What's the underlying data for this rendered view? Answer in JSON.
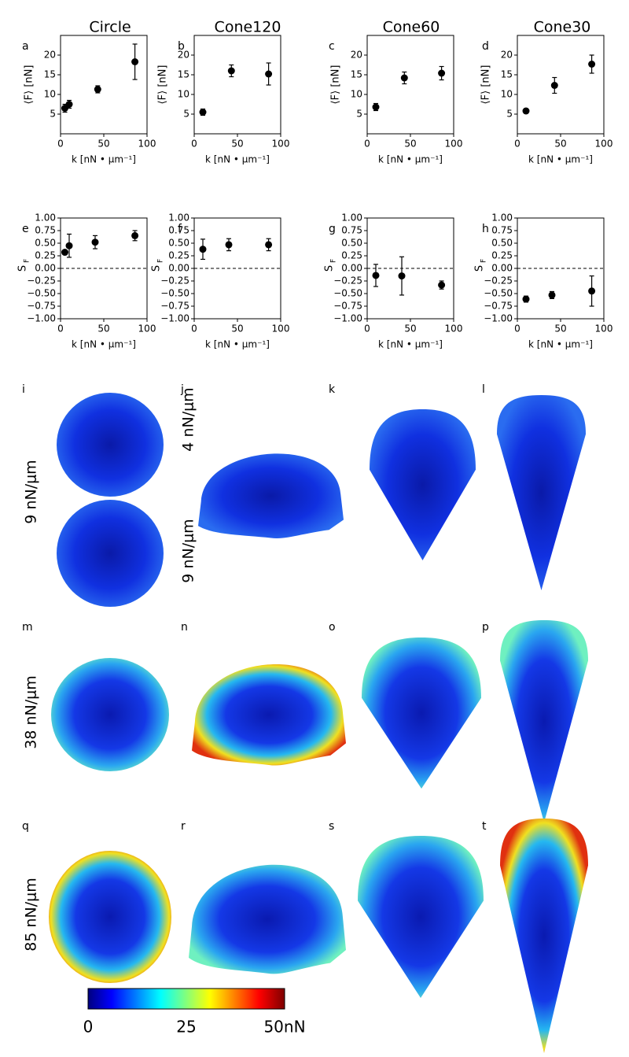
{
  "columns": [
    "Circle",
    "Cone120",
    "Cone60",
    "Cone30"
  ],
  "chart_data": [
    {
      "type": "scatter",
      "label": "a",
      "ylabel": "⟨F⟩ [nN]",
      "xlabel": "k [nN • μm⁻¹]",
      "color": "#000000",
      "x": [
        5,
        10,
        43,
        86
      ],
      "values": [
        6.5,
        7.5,
        11.3,
        18.3
      ],
      "errors": [
        1.0,
        1.0,
        0.9,
        4.5
      ],
      "xlim": [
        0,
        100
      ],
      "xticks": [
        0,
        50,
        100
      ],
      "ylim": [
        0,
        25
      ],
      "yticks": [
        5,
        10,
        15,
        20
      ]
    },
    {
      "type": "scatter",
      "label": "b",
      "ylabel": "⟨F⟩ [nN]",
      "xlabel": "k [nN • μm⁻¹]",
      "color": "#000000",
      "x": [
        10,
        43,
        86
      ],
      "values": [
        5.5,
        16,
        15.2
      ],
      "errors": [
        0.8,
        1.5,
        2.8
      ],
      "xlim": [
        0,
        100
      ],
      "xticks": [
        0,
        50,
        100
      ],
      "ylim": [
        0,
        25
      ],
      "yticks": [
        5,
        10,
        15,
        20
      ]
    },
    {
      "type": "scatter",
      "label": "c",
      "ylabel": "⟨F⟩ [nN]",
      "xlabel": "k [nN • μm⁻¹]",
      "color": "#000000",
      "x": [
        10,
        43,
        86
      ],
      "values": [
        6.8,
        14.2,
        15.4
      ],
      "errors": [
        0.9,
        1.5,
        1.7
      ],
      "xlim": [
        0,
        100
      ],
      "xticks": [
        0,
        50,
        100
      ],
      "ylim": [
        0,
        25
      ],
      "yticks": [
        5,
        10,
        15,
        20
      ]
    },
    {
      "type": "scatter",
      "label": "d",
      "ylabel": "⟨F⟩ [nN]",
      "xlabel": "k [nN • μm⁻¹]",
      "color": "#000000",
      "x": [
        10,
        43,
        86
      ],
      "values": [
        5.8,
        12.3,
        17.7
      ],
      "errors": [
        0.6,
        2.0,
        2.3
      ],
      "xlim": [
        0,
        100
      ],
      "xticks": [
        0,
        50,
        100
      ],
      "ylim": [
        0,
        25
      ],
      "yticks": [
        5,
        10,
        15,
        20
      ]
    },
    {
      "type": "scatter",
      "label": "e",
      "ylabel": "S",
      "ylabel_sub": "F",
      "xlabel": "k [nN • μm⁻¹]",
      "color": "#000000",
      "hline": 0,
      "x": [
        5,
        10,
        40,
        86
      ],
      "values": [
        0.32,
        0.45,
        0.52,
        0.65
      ],
      "errors": [
        0.02,
        0.23,
        0.13,
        0.1
      ],
      "xlim": [
        0,
        100
      ],
      "xticks": [
        0,
        50,
        100
      ],
      "ylim": [
        -1,
        1
      ],
      "yticks": [
        {
          "value": 1,
          "label": "1.00"
        },
        {
          "value": 0.75,
          "label": "0.75"
        },
        {
          "value": 0.5,
          "label": "0.50"
        },
        {
          "value": 0.25,
          "label": "0.25"
        },
        {
          "value": 0,
          "label": "0.00"
        },
        {
          "value": -0.25,
          "label": "−0.25"
        },
        {
          "value": -0.5,
          "label": "−0.50"
        },
        {
          "value": -0.75,
          "label": "−0.75"
        },
        {
          "value": -1,
          "label": "−1.00"
        }
      ]
    },
    {
      "type": "scatter",
      "label": "f",
      "ylabel": "S",
      "ylabel_sub": "F",
      "xlabel": "k [nN • μm⁻¹]",
      "color": "#000000",
      "hline": 0,
      "x": [
        10,
        40,
        86
      ],
      "values": [
        0.38,
        0.47,
        0.47
      ],
      "errors": [
        0.2,
        0.12,
        0.12
      ],
      "xlim": [
        0,
        100
      ],
      "xticks": [
        0,
        50,
        100
      ],
      "ylim": [
        -1,
        1
      ],
      "yticks": [
        {
          "value": 1,
          "label": "1.00"
        },
        {
          "value": 0.75,
          "label": "0.75"
        },
        {
          "value": 0.5,
          "label": "0.50"
        },
        {
          "value": 0.25,
          "label": "0.25"
        },
        {
          "value": 0,
          "label": "0.00"
        },
        {
          "value": -0.25,
          "label": "−0.25"
        },
        {
          "value": -0.5,
          "label": "−0.50"
        },
        {
          "value": -0.75,
          "label": "−0.75"
        },
        {
          "value": -1,
          "label": "−1.00"
        }
      ]
    },
    {
      "type": "scatter",
      "label": "g",
      "ylabel": "S",
      "ylabel_sub": "F",
      "xlabel": "k [nN • μm⁻¹]",
      "color": "#000000",
      "hline": 0,
      "x": [
        10,
        40,
        86
      ],
      "values": [
        -0.14,
        -0.15,
        -0.33
      ],
      "errors": [
        0.22,
        0.38,
        0.08
      ],
      "xlim": [
        0,
        100
      ],
      "xticks": [
        0,
        50,
        100
      ],
      "ylim": [
        -1,
        1
      ],
      "yticks": [
        {
          "value": 1,
          "label": "1.00"
        },
        {
          "value": 0.75,
          "label": "0.75"
        },
        {
          "value": 0.5,
          "label": "0.50"
        },
        {
          "value": 0.25,
          "label": "0.25"
        },
        {
          "value": 0,
          "label": "0.00"
        },
        {
          "value": -0.25,
          "label": "−0.25"
        },
        {
          "value": -0.5,
          "label": "−0.50"
        },
        {
          "value": -0.75,
          "label": "−0.75"
        },
        {
          "value": -1,
          "label": "−1.00"
        }
      ]
    },
    {
      "type": "scatter",
      "label": "h",
      "ylabel": "S",
      "ylabel_sub": "F",
      "xlabel": "k [nN • μm⁻¹]",
      "color": "#000000",
      "hline": 0,
      "x": [
        10,
        40,
        86
      ],
      "values": [
        -0.61,
        -0.53,
        -0.45
      ],
      "errors": [
        0.06,
        0.07,
        0.3
      ],
      "xlim": [
        0,
        100
      ],
      "xticks": [
        0,
        50,
        100
      ],
      "ylim": [
        -1,
        1
      ],
      "yticks": [
        {
          "value": 1,
          "label": "1.00"
        },
        {
          "value": 0.75,
          "label": "0.75"
        },
        {
          "value": 0.5,
          "label": "0.50"
        },
        {
          "value": 0.25,
          "label": "0.25"
        },
        {
          "value": 0,
          "label": "0.00"
        },
        {
          "value": -0.25,
          "label": "−0.25"
        },
        {
          "value": -0.5,
          "label": "−0.50"
        },
        {
          "value": -0.75,
          "label": "−0.75"
        },
        {
          "value": -1,
          "label": "−1.00"
        }
      ]
    }
  ],
  "maps": {
    "labels": [
      "i",
      "j",
      "k",
      "l",
      "m",
      "n",
      "o",
      "p",
      "q",
      "r",
      "s",
      "t"
    ],
    "row_labels": [
      "9 nN/μm",
      "4 nN/μm",
      "9 nN/μm",
      "38 nN/μm",
      "85 nN/μm"
    ]
  },
  "colorbar": {
    "lim": [
      0,
      50
    ],
    "ticks": [
      0,
      25,
      {
        "value": 50,
        "label": "50nN"
      }
    ]
  }
}
